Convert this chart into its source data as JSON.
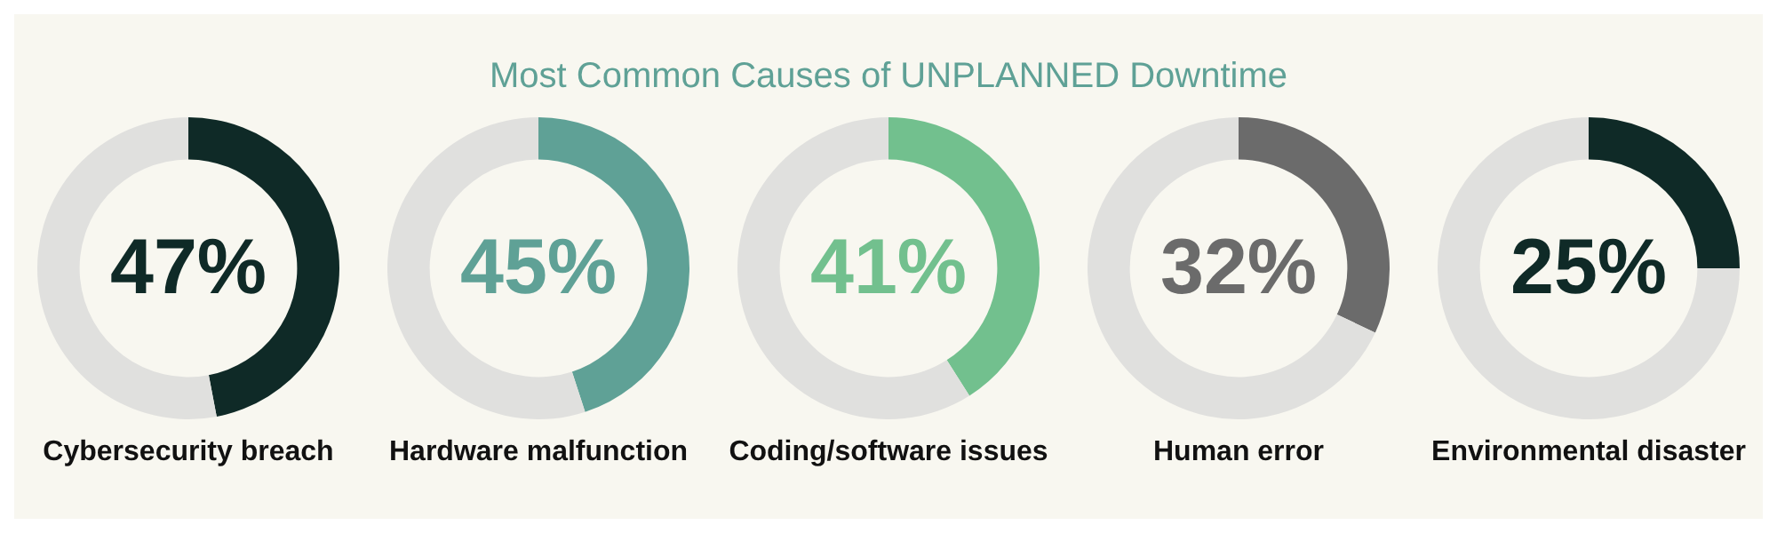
{
  "chart_data": [
    {
      "type": "donut",
      "xlabel": "Cybersecurity breach",
      "categories": [
        null,
        null
      ],
      "values": [
        47,
        53
      ],
      "colors": [
        "#0f2a27",
        "#e0e0de"
      ],
      "value_labels": [
        "47%",
        null
      ]
    },
    {
      "type": "donut",
      "xlabel": "Hardware malfunction",
      "categories": [
        null,
        null
      ],
      "values": [
        45,
        55
      ],
      "colors": [
        "#5fa196",
        "#e0e0de"
      ],
      "value_labels": [
        "45%",
        null
      ]
    },
    {
      "type": "donut",
      "title": "Most Common Causes of UNPLANNED Downtime",
      "xlabel": "Coding/software issues",
      "categories": [
        null,
        null
      ],
      "values": [
        41,
        59
      ],
      "colors": [
        "#72c08e",
        "#e0e0de"
      ],
      "value_labels": [
        "41%",
        null
      ]
    },
    {
      "type": "donut",
      "xlabel": "Human error",
      "categories": [
        null,
        null
      ],
      "values": [
        32,
        68
      ],
      "colors": [
        "#6b6b6b",
        "#e0e0de"
      ],
      "value_labels": [
        "32%",
        null
      ]
    },
    {
      "type": "donut",
      "xlabel": "Environmental disaster",
      "categories": [
        null,
        null
      ],
      "values": [
        25,
        75
      ],
      "colors": [
        "#0f2a27",
        "#e0e0de"
      ],
      "value_labels": [
        "25%",
        null
      ]
    }
  ]
}
